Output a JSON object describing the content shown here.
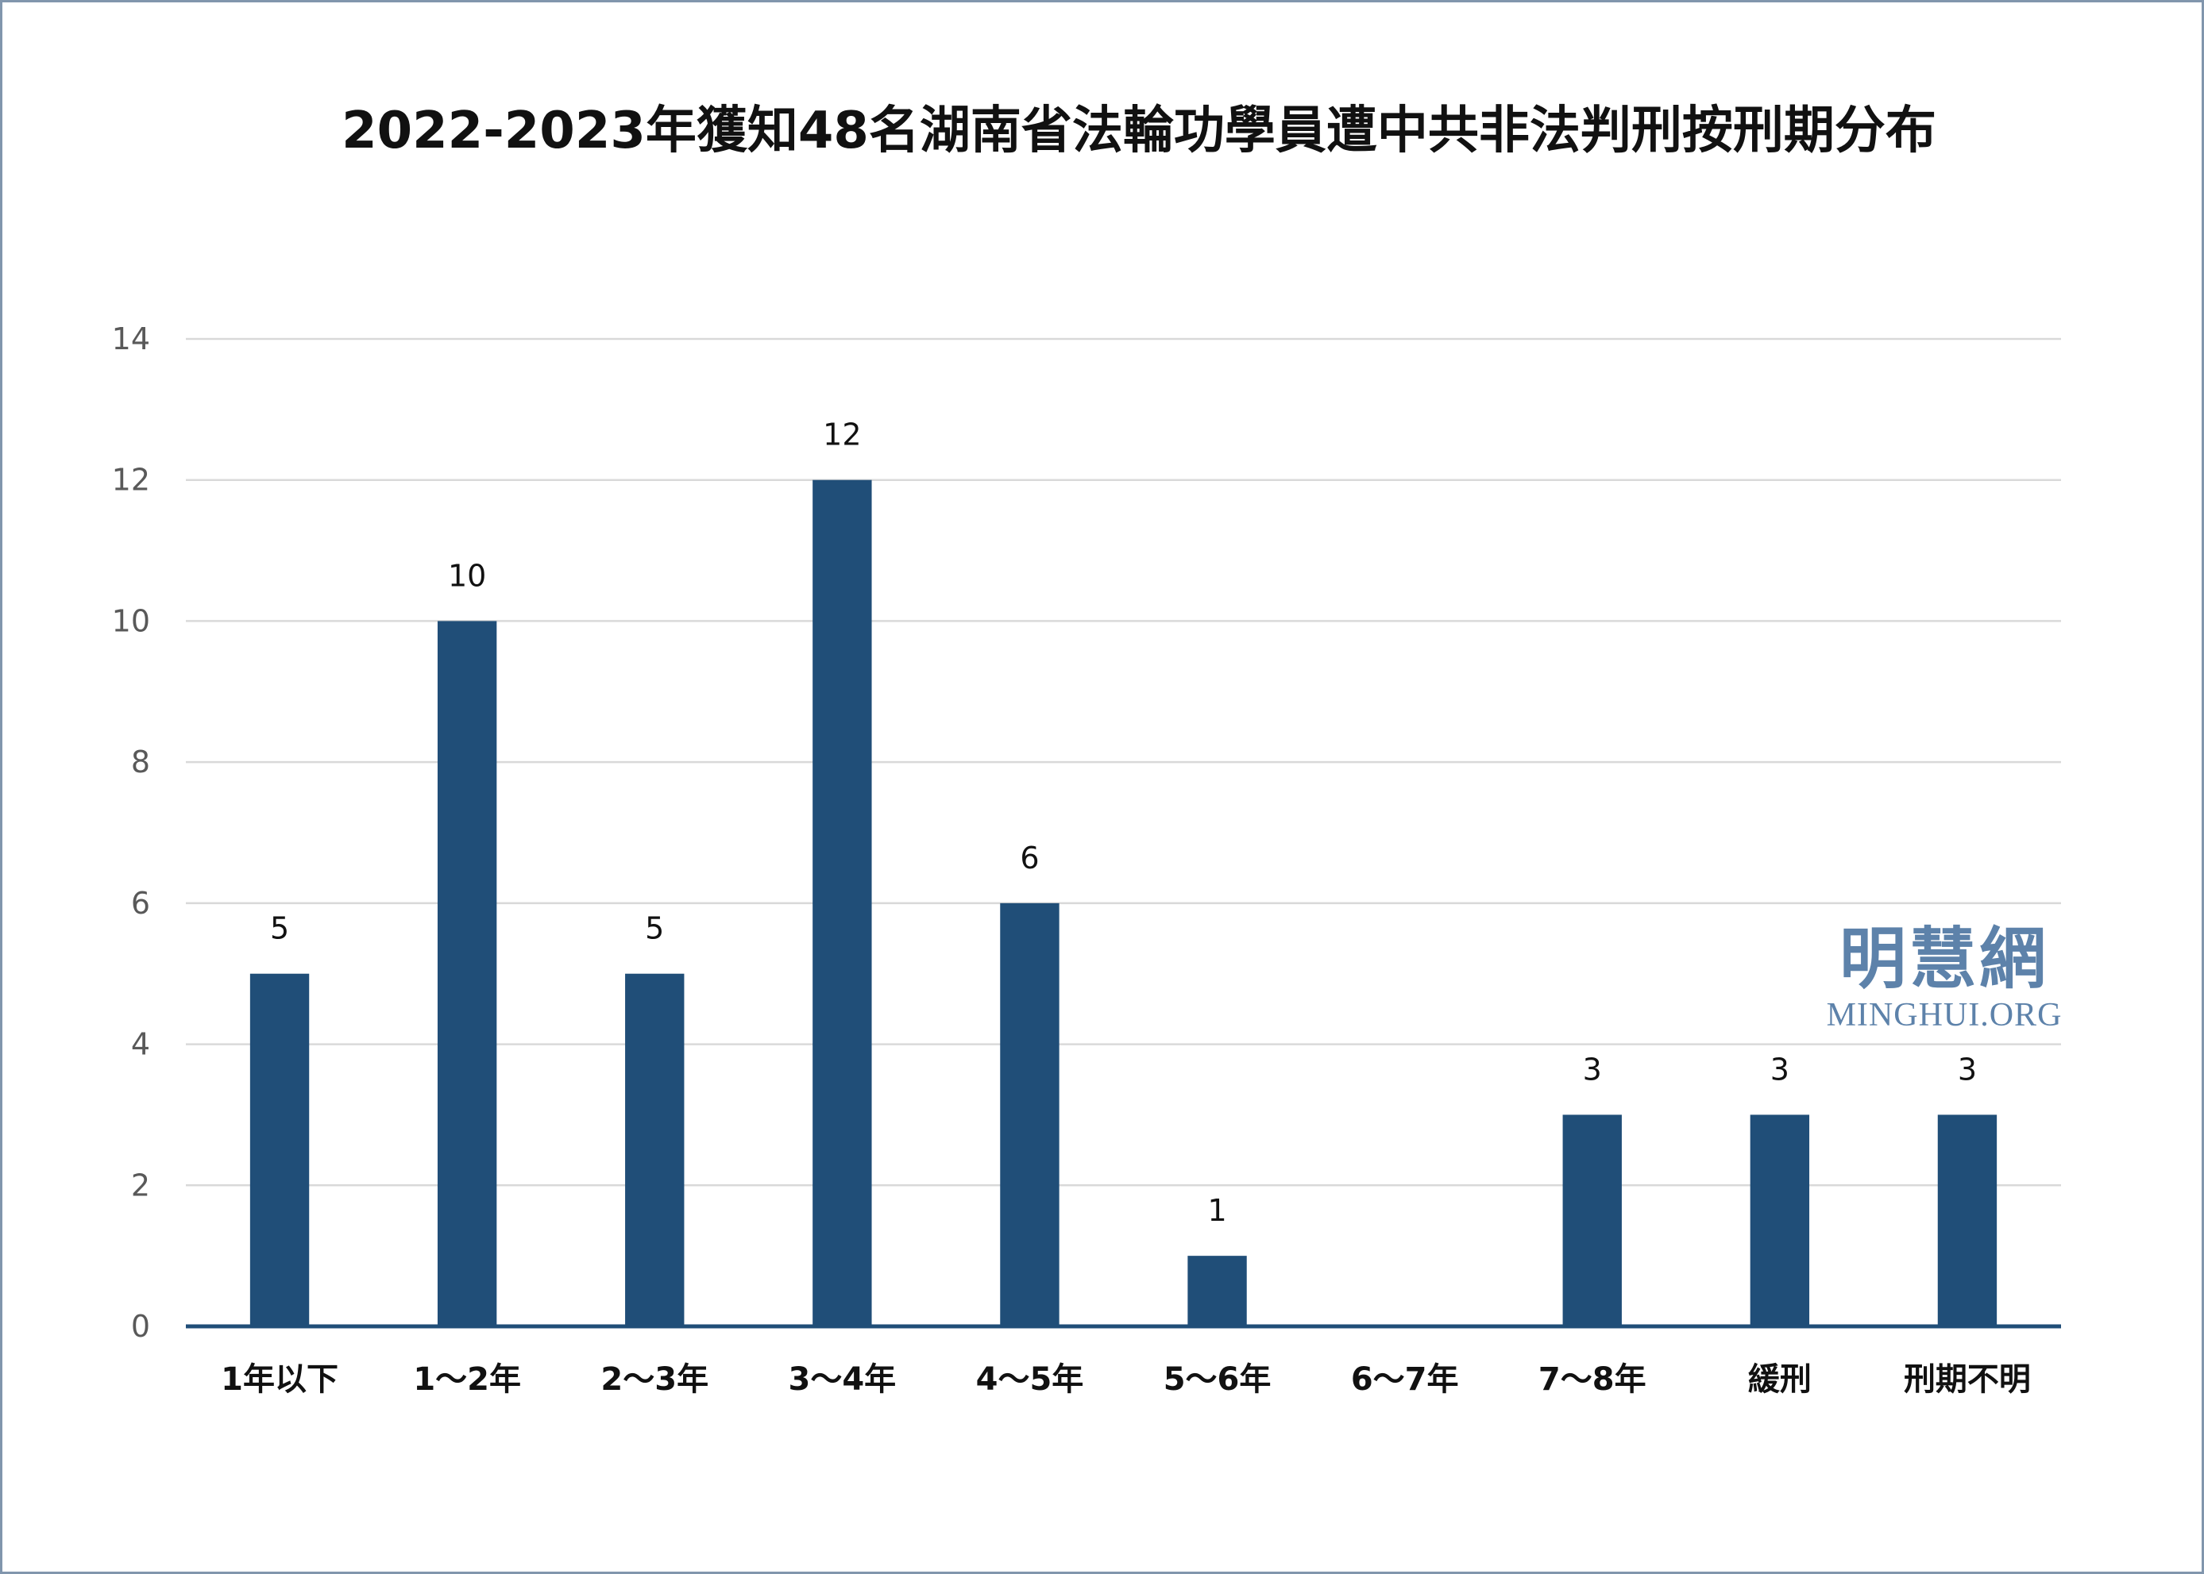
{
  "colors": {
    "bar": "#204e78",
    "axis": "#204e78",
    "grid": "#d9d9d9",
    "tick": "#595959",
    "label": "#111111",
    "watermark": "#5d82aa",
    "border": "#8196ad"
  },
  "chart_data": {
    "type": "bar",
    "title": "2022-2023年獲知48名湖南省法輪功學員遭中共非法判刑按刑期分布",
    "categories": [
      "1年以下",
      "1～2年",
      "2～3年",
      "3～4年",
      "4～5年",
      "5～6年",
      "6～7年",
      "7～8年",
      "緩刑",
      "刑期不明"
    ],
    "values": [
      5,
      10,
      5,
      12,
      6,
      1,
      0,
      3,
      3,
      3
    ],
    "ylim": [
      0,
      14
    ],
    "yticks": [
      0,
      2,
      4,
      6,
      8,
      10,
      12,
      14
    ],
    "grid": true,
    "data_labels": true,
    "legend": "none"
  },
  "watermark": {
    "logo_text": "明慧網",
    "site": "MINGHUI.ORG"
  }
}
